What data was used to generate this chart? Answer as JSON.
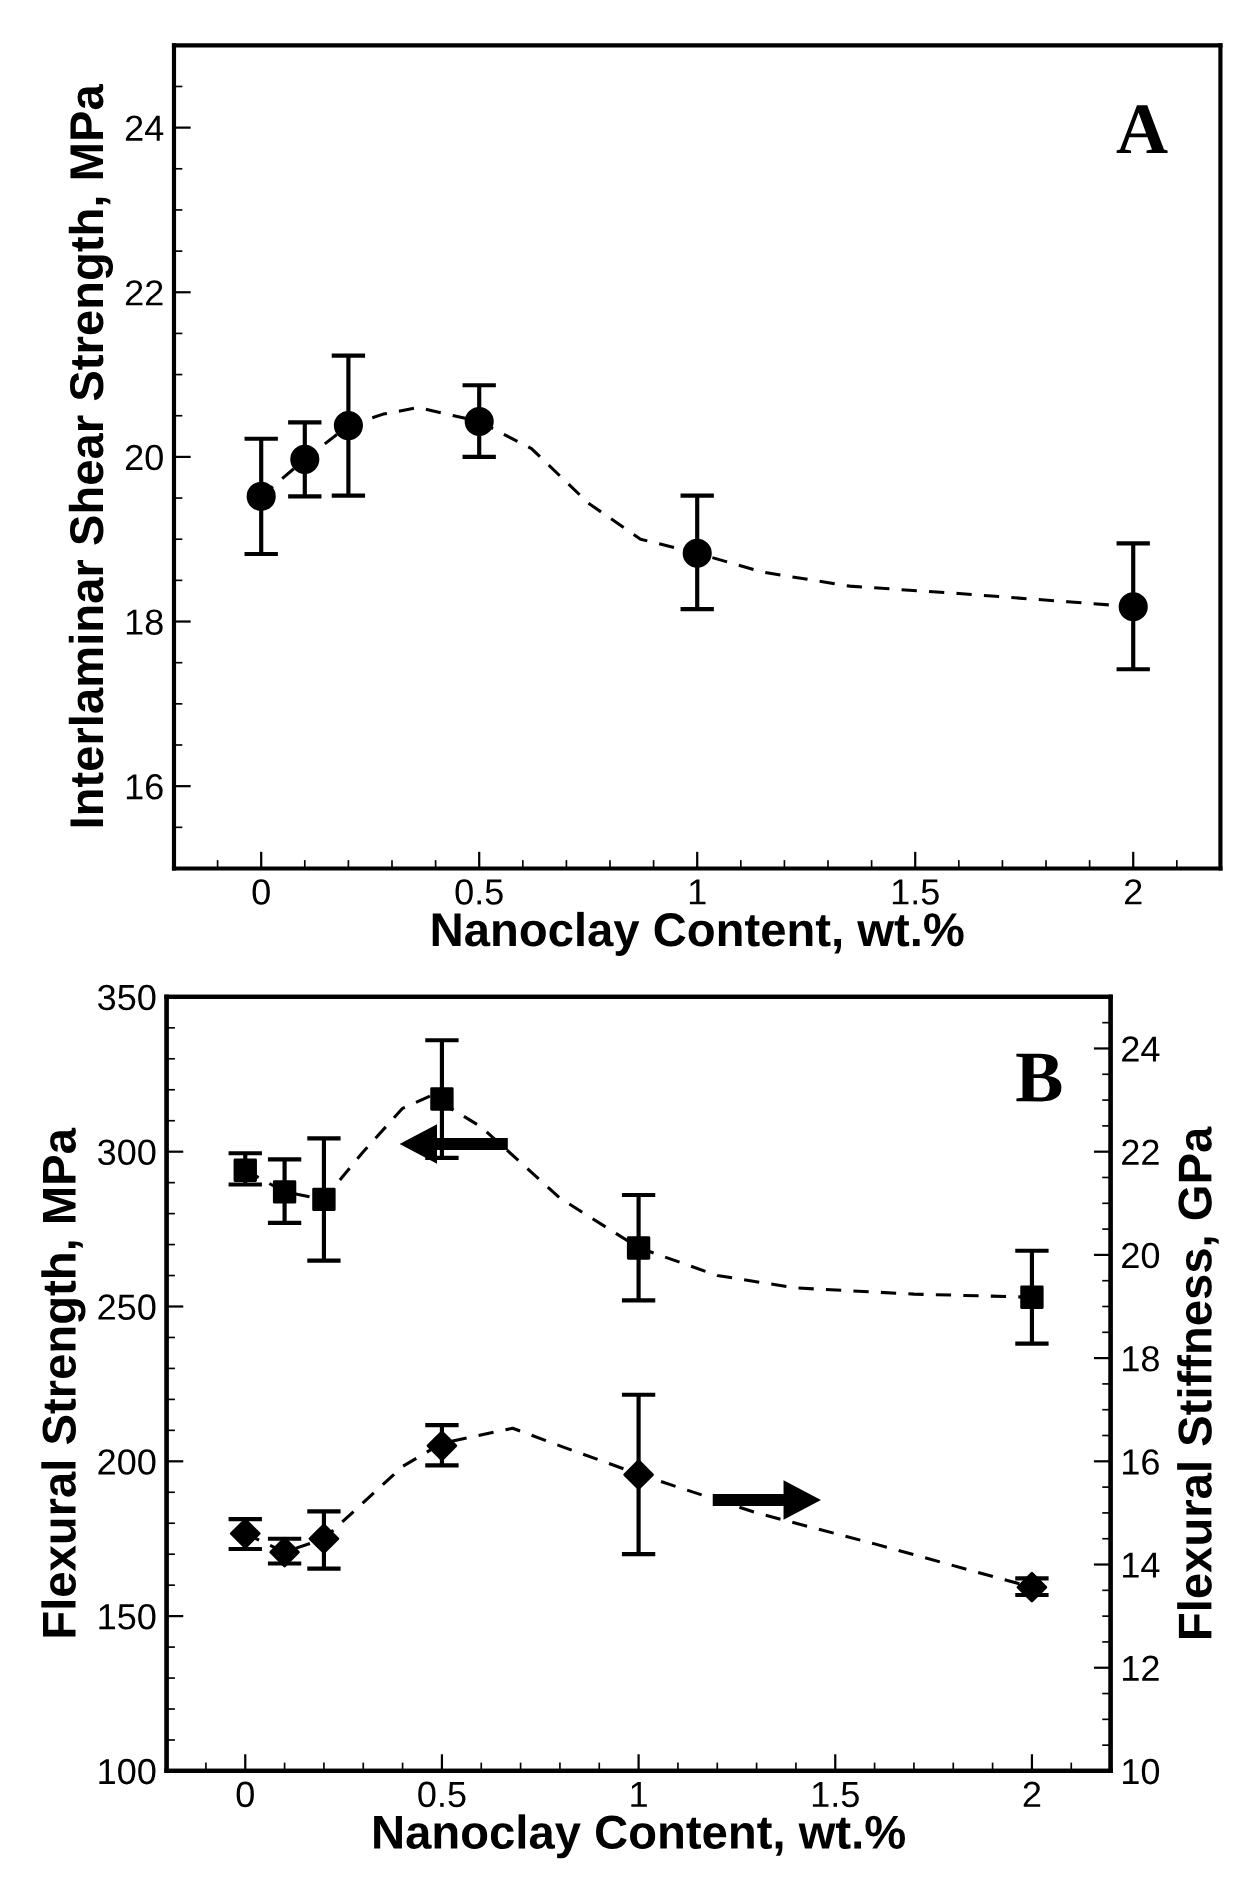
{
  "chart_data": [
    {
      "type": "scatter",
      "xlabel": "Nanoclay Content, wt.%",
      "ylabel": "Interlaminar Shear Strength, MPa",
      "annotations": [
        "A"
      ],
      "xlim": [
        -0.2,
        2.2
      ],
      "xticks": [
        0,
        0.5,
        1,
        1.5,
        2
      ],
      "ylim": [
        15,
        25
      ],
      "yticks": [
        16,
        18,
        20,
        22,
        24
      ],
      "grid": false,
      "legend": false,
      "series": [
        {
          "type": "line",
          "color": "#000000",
          "marker": "none",
          "line_style": "dashed",
          "x": [
            0,
            0.1,
            0.2,
            0.28,
            0.36,
            0.5,
            0.62,
            0.75,
            0.87,
            1.0,
            1.15,
            1.35,
            1.6,
            1.85,
            2
          ],
          "values": [
            19.52,
            19.97,
            20.38,
            20.52,
            20.6,
            20.43,
            20.1,
            19.44,
            19.0,
            18.83,
            18.6,
            18.43,
            18.34,
            18.24,
            18.18
          ]
        },
        {
          "color": "#000000",
          "marker": "circle",
          "x": [
            0,
            0.1,
            0.2,
            0.5,
            1,
            2
          ],
          "values": [
            19.52,
            19.97,
            20.38,
            20.43,
            18.83,
            18.18
          ],
          "errors": [
            [
              18.82,
              20.22
            ],
            [
              19.52,
              20.42
            ],
            [
              19.53,
              21.23
            ],
            [
              20.0,
              20.87
            ],
            [
              18.15,
              19.53
            ],
            [
              17.42,
              18.95
            ]
          ]
        }
      ]
    },
    {
      "type": "scatter",
      "xlabel": "Nanoclay Content, wt.%",
      "ylabel": "Flexural Strength, MPa",
      "y2label": "Flexural Stiffness, GPa",
      "annotations": [
        "B"
      ],
      "xlim": [
        -0.2,
        2.2
      ],
      "xticks": [
        0,
        0.5,
        1,
        1.5,
        2
      ],
      "ylim": [
        100,
        350
      ],
      "yticks": [
        100,
        150,
        200,
        250,
        300,
        350
      ],
      "y2lim": [
        10,
        25
      ],
      "y2ticks": [
        10,
        12,
        14,
        16,
        18,
        20,
        22,
        24
      ],
      "grid": false,
      "legend": false,
      "series": [
        {
          "type": "line",
          "color": "#000000",
          "marker": "none",
          "line_style": "dashed",
          "x": [
            0,
            0.1,
            0.2,
            0.3,
            0.4,
            0.47,
            0.6,
            0.8,
            1.0,
            1.2,
            1.4,
            1.7,
            2
          ],
          "values": [
            294,
            287,
            284.6,
            300,
            314,
            318,
            308,
            285,
            269,
            260,
            256,
            254,
            253
          ]
        },
        {
          "color": "#000000",
          "marker": "square",
          "x": [
            0,
            0.1,
            0.2,
            0.5,
            1,
            2
          ],
          "values": [
            294,
            287,
            284.6,
            317,
            268.9,
            253
          ],
          "errors": [
            [
              289.4,
              299.5
            ],
            [
              277,
              297.5
            ],
            [
              264.8,
              304.3
            ],
            [
              298,
              336
            ],
            [
              252,
              286
            ],
            [
              238,
              268
            ]
          ]
        },
        {
          "type": "line",
          "axis": "y2",
          "color": "#000000",
          "marker": "none",
          "line_style": "dashed",
          "x": [
            0,
            0.1,
            0.2,
            0.3,
            0.4,
            0.5,
            0.68,
            0.8,
            1.0,
            1.3,
            1.6,
            2
          ],
          "values": [
            14.6,
            14.24,
            14.5,
            15.2,
            15.9,
            16.35,
            16.64,
            16.3,
            15.75,
            15.0,
            14.4,
            13.56
          ]
        },
        {
          "axis": "y2",
          "color": "#000000",
          "marker": "diamond",
          "x": [
            0,
            0.1,
            0.2,
            0.5,
            1,
            2
          ],
          "values": [
            14.6,
            14.24,
            14.5,
            16.3,
            15.74,
            13.56
          ],
          "errors": [
            [
              14.3,
              14.88
            ],
            [
              14.02,
              14.5
            ],
            [
              13.92,
              15.03
            ],
            [
              15.92,
              16.7
            ],
            [
              14.2,
              17.29
            ],
            [
              13.41,
              13.73
            ]
          ]
        }
      ]
    }
  ]
}
